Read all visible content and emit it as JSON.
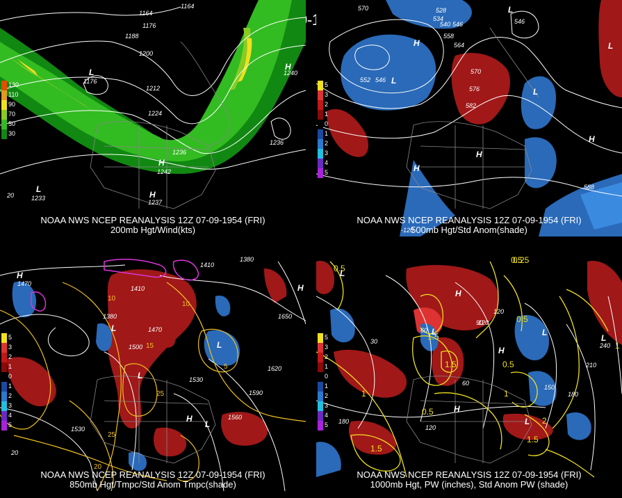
{
  "main_title": "12Z 07-09-1954 (FRI)",
  "panels": [
    {
      "caption1": "NOAA NWS NCEP REANALYSIS 12Z 07-09-1954 (FRI)",
      "caption2": "200mb Hgt/Wind(kts)",
      "legend": [
        {
          "label": "130",
          "color": "#e05000"
        },
        {
          "label": "110",
          "color": "#e09a20"
        },
        {
          "label": "90",
          "color": "#f0e020"
        },
        {
          "label": "70",
          "color": "#88cc22"
        },
        {
          "label": "50",
          "color": "#33bb22"
        },
        {
          "label": "30",
          "color": "#118811"
        }
      ],
      "contour_labels": [
        {
          "text": "1164"
        },
        {
          "text": "1176"
        },
        {
          "text": "1188"
        },
        {
          "text": "1200"
        },
        {
          "text": "1212"
        },
        {
          "text": "1224"
        },
        {
          "text": "1236"
        },
        {
          "text": "1240"
        },
        {
          "text": "1236"
        },
        {
          "text": "1176"
        },
        {
          "text": "1242"
        },
        {
          "text": "1237"
        },
        {
          "text": "1233"
        },
        {
          "text": "1164"
        }
      ],
      "lat_label": "20"
    },
    {
      "caption1": "NOAA NWS NCEP REANALYSIS 12Z 07-09-1954 (FRI)",
      "caption2": "500mb Hgt/Std Anom(shade)",
      "legend": [
        {
          "label": "5",
          "color": "#f0e020"
        },
        {
          "label": "3",
          "color": "#dd3333"
        },
        {
          "label": "2",
          "color": "#c01818"
        },
        {
          "label": "1",
          "color": "#8a0a0a"
        },
        {
          "label": "0",
          "color": "#000000"
        },
        {
          "label": "1",
          "color": "#1a4aa0"
        },
        {
          "label": "2",
          "color": "#2a7ad0"
        },
        {
          "label": "3",
          "color": "#22c0e0"
        },
        {
          "label": "4",
          "color": "#6a2ac0"
        },
        {
          "label": "5",
          "color": "#aa22dd"
        }
      ],
      "contour_labels": [
        {
          "text": "570"
        },
        {
          "text": "528"
        },
        {
          "text": "534"
        },
        {
          "text": "540"
        },
        {
          "text": "546"
        },
        {
          "text": "552"
        },
        {
          "text": "558"
        },
        {
          "text": "564"
        },
        {
          "text": "570"
        },
        {
          "text": "576"
        },
        {
          "text": "582"
        },
        {
          "text": "552"
        },
        {
          "text": "546"
        },
        {
          "text": "588"
        },
        {
          "text": "546"
        }
      ],
      "lon_label": "-120"
    },
    {
      "caption1": "NOAA NWS NCEP REANALYSIS 12Z 07-09-1954 (FRI)",
      "caption2": "850mb Hgt/Tmpc/Std Anom Tmpc(shade)",
      "legend": [
        {
          "label": "5",
          "color": "#f0e020"
        },
        {
          "label": "3",
          "color": "#dd3333"
        },
        {
          "label": "2",
          "color": "#c01818"
        },
        {
          "label": "1",
          "color": "#8a0a0a"
        },
        {
          "label": "0",
          "color": "#000000"
        },
        {
          "label": "1",
          "color": "#1a4aa0"
        },
        {
          "label": "2",
          "color": "#2a7ad0"
        },
        {
          "label": "3",
          "color": "#22c0e0"
        },
        {
          "label": "4",
          "color": "#6a2ac0"
        },
        {
          "label": "5",
          "color": "#aa22dd"
        }
      ],
      "contour_labels": [
        {
          "text": "1470"
        },
        {
          "text": "1380"
        },
        {
          "text": "1410"
        },
        {
          "text": "1500"
        },
        {
          "text": "1530"
        },
        {
          "text": "1590"
        },
        {
          "text": "1620"
        },
        {
          "text": "1650"
        },
        {
          "text": "1560"
        },
        {
          "text": "1530"
        },
        {
          "text": "1410"
        },
        {
          "text": "1380"
        },
        {
          "text": "1470"
        },
        {
          "text": "10"
        },
        {
          "text": "15"
        },
        {
          "text": "20"
        },
        {
          "text": "25"
        },
        {
          "text": "5"
        },
        {
          "text": "20"
        }
      ]
    },
    {
      "caption1": "NOAA NWS NCEP REANALYSIS 12Z 07-09-1954 (FRI)",
      "caption2": "1000mb Hgt, PW (inches), Std Anom PW (shade)",
      "legend": [
        {
          "label": "5",
          "color": "#f0e020"
        },
        {
          "label": "3",
          "color": "#dd3333"
        },
        {
          "label": "2",
          "color": "#c01818"
        },
        {
          "label": "1",
          "color": "#8a0a0a"
        },
        {
          "label": "0",
          "color": "#000000"
        },
        {
          "label": "1",
          "color": "#1a4aa0"
        },
        {
          "label": "2",
          "color": "#2a7ad0"
        },
        {
          "label": "3",
          "color": "#22c0e0"
        },
        {
          "label": "4",
          "color": "#6a2ac0"
        },
        {
          "label": "5",
          "color": "#aa22dd"
        }
      ],
      "contour_labels": [
        {
          "text": "0.5"
        },
        {
          "text": "0.25"
        },
        {
          "text": "1"
        },
        {
          "text": "1.5"
        },
        {
          "text": "0.5"
        },
        {
          "text": "30"
        },
        {
          "text": "60"
        },
        {
          "text": "90"
        },
        {
          "text": "120"
        },
        {
          "text": "150"
        },
        {
          "text": "180"
        },
        {
          "text": "210"
        },
        {
          "text": "240"
        },
        {
          "text": "180"
        },
        {
          "text": "150"
        },
        {
          "text": "120"
        },
        {
          "text": "1.5"
        },
        {
          "text": "2"
        },
        {
          "text": "0.5"
        },
        {
          "text": "1"
        }
      ]
    }
  ]
}
